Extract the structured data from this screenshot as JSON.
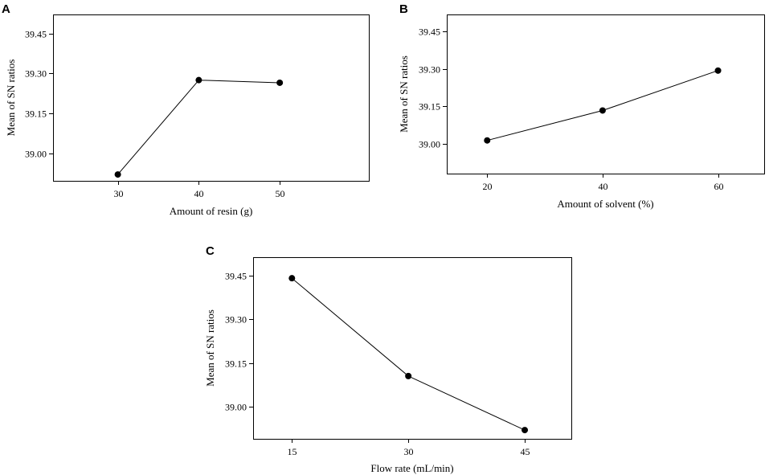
{
  "chart_data": [
    {
      "type": "line",
      "panel": "A",
      "x": [
        30,
        40,
        50
      ],
      "values": [
        38.92,
        39.275,
        39.265
      ],
      "xlabel": "Amount of resin (g)",
      "ylabel": "Mean of SN ratios",
      "xticks": [
        "30",
        "40",
        "50"
      ],
      "yticks": [
        "39.00",
        "39.15",
        "39.30",
        "39.45"
      ],
      "ytick_values": [
        39.0,
        39.15,
        39.3,
        39.45
      ],
      "ylim": [
        38.896,
        39.522
      ],
      "xlim": [
        22,
        61
      ]
    },
    {
      "type": "line",
      "panel": "B",
      "x": [
        20,
        40,
        60
      ],
      "values": [
        39.013,
        39.133,
        39.293
      ],
      "xlabel": "Amount of solvent (%)",
      "ylabel": "Mean of SN ratios",
      "xticks": [
        "20",
        "40",
        "60"
      ],
      "yticks": [
        "39.00",
        "39.15",
        "39.30",
        "39.45"
      ],
      "ytick_values": [
        39.0,
        39.15,
        39.3,
        39.45
      ],
      "ylim": [
        38.88,
        39.518
      ],
      "xlim": [
        13,
        68
      ]
    },
    {
      "type": "line",
      "panel": "C",
      "x": [
        15,
        30,
        45
      ],
      "values": [
        39.44,
        39.105,
        38.92
      ],
      "xlabel": "Flow rate (mL/min)",
      "ylabel": "Mean of SN ratios",
      "xticks": [
        "15",
        "30",
        "45"
      ],
      "yticks": [
        "39.00",
        "39.15",
        "39.30",
        "39.45"
      ],
      "ytick_values": [
        39.0,
        39.15,
        39.3,
        39.45
      ],
      "ylim": [
        38.89,
        39.512
      ],
      "xlim": [
        10,
        51
      ]
    }
  ]
}
